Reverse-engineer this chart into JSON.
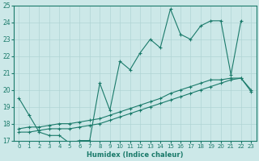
{
  "background_color": "#cce8e8",
  "grid_color": "#b0d4d4",
  "line_color": "#1a7a6a",
  "xlabel": "Humidex (Indice chaleur)",
  "xlim": [
    -0.5,
    23.5
  ],
  "ylim": [
    17,
    25
  ],
  "yticks": [
    17,
    18,
    19,
    20,
    21,
    22,
    23,
    24,
    25
  ],
  "xticks": [
    0,
    1,
    2,
    3,
    4,
    5,
    6,
    7,
    8,
    9,
    10,
    11,
    12,
    13,
    14,
    15,
    16,
    17,
    18,
    19,
    20,
    21,
    22,
    23
  ],
  "series": [
    {
      "x": [
        0,
        1,
        2,
        3,
        4,
        5,
        6,
        7,
        8,
        9,
        10,
        11,
        12,
        13,
        14,
        15,
        16,
        17,
        18,
        19,
        20,
        21,
        22,
        23
      ],
      "y": [
        19.5,
        18.5,
        17.5,
        17.3,
        17.3,
        16.85,
        17.0,
        17.0,
        20.4,
        18.8,
        21.7,
        21.2,
        22.2,
        23.0,
        22.5,
        24.8,
        23.3,
        23.0,
        23.8,
        24.1,
        24.1,
        20.9,
        24.1,
        null
      ]
    },
    {
      "x": [
        0,
        1,
        2,
        3,
        4,
        5,
        6,
        7,
        8,
        9,
        10,
        11,
        12,
        13,
        14,
        15,
        16,
        17,
        18,
        19,
        20,
        21,
        22,
        23
      ],
      "y": [
        17.5,
        17.5,
        17.6,
        17.7,
        17.7,
        17.7,
        17.8,
        17.9,
        18.0,
        18.2,
        18.4,
        18.6,
        18.8,
        19.0,
        19.2,
        19.4,
        19.6,
        19.8,
        20.0,
        20.2,
        20.4,
        20.6,
        20.7,
        19.9
      ]
    },
    {
      "x": [
        0,
        1,
        2,
        3,
        4,
        5,
        6,
        7,
        8,
        9,
        10,
        11,
        12,
        13,
        14,
        15,
        16,
        17,
        18,
        19,
        20,
        21,
        22,
        23
      ],
      "y": [
        17.7,
        17.8,
        17.8,
        17.9,
        18.0,
        18.0,
        18.1,
        18.2,
        18.3,
        18.5,
        18.7,
        18.9,
        19.1,
        19.3,
        19.5,
        19.8,
        20.0,
        20.2,
        20.4,
        20.6,
        20.6,
        20.7,
        20.7,
        20.0
      ]
    }
  ]
}
